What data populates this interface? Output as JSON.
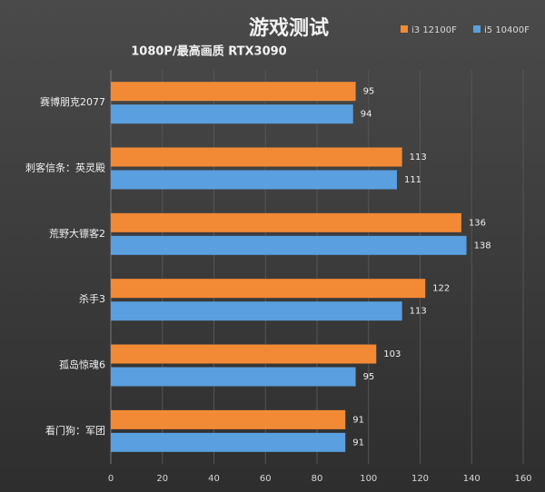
{
  "chart_data": {
    "type": "bar",
    "orientation": "horizontal",
    "title": "游戏测试",
    "subtitle": "1080P/最高画质 RTX3090",
    "categories": [
      "赛博朋克2077",
      "刺客信条：英灵殿",
      "荒野大镖客2",
      "杀手3",
      "孤岛惊魂6",
      "看门狗：军团"
    ],
    "series": [
      {
        "name": "i3 12100F",
        "color": "#f28a35",
        "values": [
          95,
          113,
          136,
          122,
          103,
          91
        ]
      },
      {
        "name": "i5 10400F",
        "color": "#5a9fdf",
        "values": [
          94,
          111,
          138,
          113,
          95,
          91
        ]
      }
    ],
    "xlim": [
      0,
      160
    ],
    "xticks": [
      0,
      20,
      40,
      60,
      80,
      100,
      120,
      140,
      160
    ],
    "grid": true,
    "legend": "top-right"
  }
}
